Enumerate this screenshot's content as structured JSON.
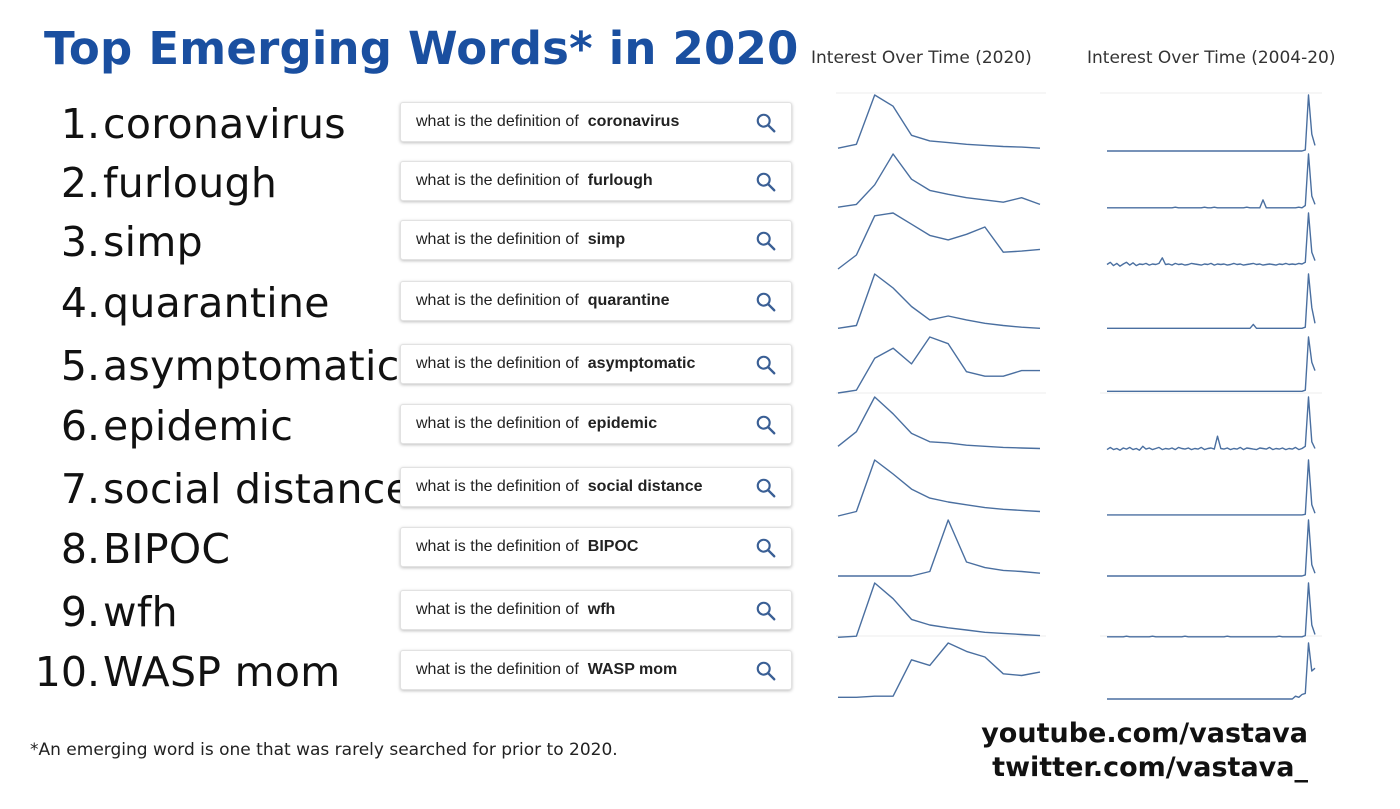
{
  "title": "Top Emerging Words* in 2020",
  "headers": {
    "recent": "Interest Over Time (2020)",
    "longterm": "Interest Over Time (2004-20)"
  },
  "search_prefix": "what is the definition of",
  "icons": {
    "search": "search-icon"
  },
  "colors": {
    "title": "#1a4fa0",
    "line": "#4a6fa0"
  },
  "footnote": "*An emerging word is one that was rarely searched for prior to 2020.",
  "links": [
    "youtube.com/vastava",
    "twitter.com/vastava_"
  ],
  "chart_data": {
    "type": "line",
    "words": [
      {
        "rank": "1.",
        "word": "coronavirus",
        "y2020": [
          5,
          12,
          100,
          80,
          28,
          18,
          15,
          12,
          10,
          8,
          7,
          5
        ],
        "y0420": [
          0,
          0,
          0,
          0,
          0,
          0,
          0,
          0,
          0,
          0,
          0,
          0,
          0,
          0,
          0,
          0,
          0,
          0,
          0,
          0,
          0,
          0,
          0,
          0,
          0,
          0,
          0,
          0,
          0,
          0,
          0,
          0,
          0,
          0,
          0,
          0,
          0,
          0,
          0,
          0,
          0,
          0,
          0,
          0,
          0,
          0,
          0,
          0,
          0,
          0,
          0,
          0,
          0,
          0,
          0,
          0,
          0,
          0,
          0,
          0,
          0,
          2,
          100,
          30,
          10
        ]
      },
      {
        "rank": "2.",
        "word": "furlough",
        "y2020": [
          5,
          10,
          45,
          100,
          55,
          35,
          28,
          22,
          18,
          14,
          22,
          10
        ],
        "y0420": [
          4,
          4,
          4,
          4,
          4,
          4,
          4,
          4,
          4,
          4,
          4,
          4,
          4,
          4,
          4,
          4,
          4,
          4,
          4,
          4,
          4,
          5,
          4,
          4,
          4,
          4,
          4,
          4,
          4,
          4,
          5,
          4,
          4,
          5,
          4,
          4,
          4,
          4,
          4,
          4,
          4,
          4,
          4,
          5,
          4,
          4,
          4,
          4,
          18,
          4,
          4,
          4,
          4,
          4,
          4,
          4,
          4,
          4,
          4,
          5,
          4,
          8,
          100,
          25,
          10
        ]
      },
      {
        "rank": "3.",
        "word": "simp",
        "y2020": [
          0,
          25,
          95,
          100,
          80,
          60,
          52,
          62,
          75,
          30,
          32,
          35
        ],
        "y0420": [
          8,
          12,
          6,
          10,
          5,
          9,
          12,
          7,
          11,
          6,
          9,
          8,
          10,
          7,
          9,
          8,
          10,
          20,
          8,
          9,
          7,
          10,
          8,
          9,
          7,
          8,
          10,
          9,
          8,
          7,
          9,
          8,
          10,
          7,
          9,
          8,
          9,
          7,
          8,
          10,
          8,
          9,
          7,
          8,
          9,
          10,
          8,
          9,
          7,
          8,
          9,
          8,
          7,
          9,
          8,
          10,
          8,
          9,
          8,
          10,
          9,
          12,
          100,
          30,
          15
        ]
      },
      {
        "rank": "4.",
        "word": "quarantine",
        "y2020": [
          3,
          8,
          100,
          75,
          42,
          18,
          25,
          18,
          12,
          8,
          5,
          3
        ],
        "y0420": [
          3,
          3,
          3,
          3,
          3,
          3,
          3,
          3,
          3,
          3,
          3,
          3,
          3,
          3,
          3,
          3,
          3,
          3,
          3,
          3,
          3,
          3,
          3,
          3,
          3,
          3,
          3,
          3,
          3,
          3,
          3,
          3,
          3,
          3,
          3,
          3,
          3,
          3,
          3,
          3,
          3,
          3,
          3,
          3,
          3,
          10,
          3,
          3,
          3,
          3,
          3,
          3,
          3,
          3,
          3,
          3,
          3,
          3,
          3,
          3,
          3,
          5,
          100,
          40,
          12
        ]
      },
      {
        "rank": "5.",
        "word": "asymptomatic",
        "y2020": [
          0,
          5,
          62,
          80,
          52,
          100,
          88,
          38,
          30,
          30,
          40,
          40
        ],
        "y0420": [
          3,
          3,
          3,
          3,
          3,
          3,
          3,
          3,
          3,
          3,
          3,
          3,
          3,
          3,
          3,
          3,
          3,
          3,
          3,
          3,
          3,
          3,
          3,
          3,
          3,
          3,
          3,
          3,
          3,
          3,
          3,
          3,
          3,
          3,
          3,
          3,
          3,
          3,
          3,
          3,
          3,
          3,
          3,
          3,
          3,
          3,
          3,
          3,
          3,
          3,
          3,
          3,
          3,
          3,
          3,
          3,
          3,
          3,
          3,
          3,
          3,
          5,
          100,
          55,
          40
        ]
      },
      {
        "rank": "6.",
        "word": "epidemic",
        "y2020": [
          12,
          38,
          100,
          70,
          35,
          20,
          18,
          14,
          12,
          10,
          9,
          8
        ],
        "y0420": [
          6,
          10,
          6,
          8,
          5,
          9,
          7,
          10,
          6,
          8,
          5,
          12,
          7,
          9,
          6,
          8,
          10,
          6,
          8,
          7,
          9,
          6,
          10,
          8,
          7,
          9,
          6,
          8,
          7,
          10,
          6,
          8,
          9,
          7,
          30,
          8,
          7,
          9,
          6,
          8,
          7,
          10,
          6,
          9,
          8,
          7,
          6,
          9,
          8,
          7,
          10,
          6,
          8,
          7,
          9,
          6,
          8,
          7,
          10,
          6,
          8,
          12,
          100,
          20,
          8
        ]
      },
      {
        "rank": "7.",
        "word": "social distance",
        "y2020": [
          0,
          8,
          100,
          75,
          48,
          32,
          25,
          20,
          15,
          12,
          10,
          8
        ],
        "y0420": [
          2,
          2,
          2,
          2,
          2,
          2,
          2,
          2,
          2,
          2,
          2,
          2,
          2,
          2,
          2,
          2,
          2,
          2,
          2,
          2,
          2,
          2,
          2,
          2,
          2,
          2,
          2,
          2,
          2,
          2,
          2,
          2,
          2,
          2,
          2,
          2,
          2,
          2,
          2,
          2,
          2,
          2,
          2,
          2,
          2,
          2,
          2,
          2,
          2,
          2,
          2,
          2,
          2,
          2,
          2,
          2,
          2,
          2,
          2,
          2,
          2,
          3,
          100,
          20,
          5
        ]
      },
      {
        "rank": "8.",
        "word": "BIPOC",
        "y2020": [
          0,
          0,
          0,
          0,
          0,
          8,
          100,
          25,
          15,
          10,
          8,
          5
        ],
        "y0420": [
          0,
          0,
          0,
          0,
          0,
          0,
          0,
          0,
          0,
          0,
          0,
          0,
          0,
          0,
          0,
          0,
          0,
          0,
          0,
          0,
          0,
          0,
          0,
          0,
          0,
          0,
          0,
          0,
          0,
          0,
          0,
          0,
          0,
          0,
          0,
          0,
          0,
          0,
          0,
          0,
          0,
          0,
          0,
          0,
          0,
          0,
          0,
          0,
          0,
          0,
          0,
          0,
          0,
          0,
          0,
          0,
          0,
          0,
          0,
          0,
          0,
          2,
          100,
          20,
          5
        ]
      },
      {
        "rank": "9.",
        "word": "wfh",
        "y2020": [
          3,
          5,
          100,
          72,
          35,
          25,
          20,
          16,
          12,
          10,
          8,
          6
        ],
        "y0420": [
          4,
          4,
          4,
          4,
          4,
          4,
          5,
          4,
          4,
          4,
          4,
          4,
          4,
          4,
          5,
          4,
          4,
          4,
          4,
          4,
          4,
          4,
          4,
          4,
          5,
          4,
          4,
          4,
          4,
          4,
          4,
          4,
          4,
          4,
          4,
          4,
          4,
          5,
          4,
          4,
          4,
          4,
          4,
          4,
          4,
          4,
          4,
          4,
          4,
          4,
          4,
          4,
          4,
          5,
          4,
          4,
          4,
          4,
          4,
          4,
          4,
          6,
          100,
          25,
          8
        ]
      },
      {
        "rank": "10.",
        "word": "WASP mom",
        "y2020": [
          3,
          3,
          5,
          5,
          70,
          60,
          100,
          85,
          75,
          45,
          42,
          48
        ],
        "y0420": [
          0,
          0,
          0,
          0,
          0,
          0,
          0,
          0,
          0,
          0,
          0,
          0,
          0,
          0,
          0,
          0,
          0,
          0,
          0,
          0,
          0,
          0,
          0,
          0,
          0,
          0,
          0,
          0,
          0,
          0,
          0,
          0,
          0,
          0,
          0,
          0,
          0,
          0,
          0,
          0,
          0,
          0,
          0,
          0,
          0,
          0,
          0,
          0,
          0,
          0,
          0,
          0,
          0,
          0,
          0,
          0,
          0,
          0,
          5,
          3,
          8,
          10,
          100,
          50,
          55
        ]
      }
    ]
  }
}
